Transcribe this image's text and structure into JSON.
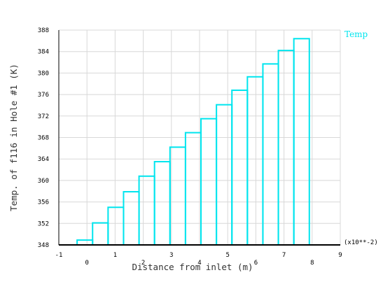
{
  "chart_data": {
    "type": "bar",
    "xlabel": "Distance from inlet (m)",
    "ylabel": "Temp. of f116 in Hole #1 (K)",
    "x_multiplier": "(x10**-2)",
    "xlim": [
      -1,
      9
    ],
    "ylim": [
      348,
      388
    ],
    "xticks": [
      "-1",
      "0",
      "1",
      "2",
      "3",
      "4",
      "5",
      "6",
      "7",
      "8",
      "9"
    ],
    "yticks": [
      "348",
      "352",
      "356",
      "360",
      "364",
      "368",
      "372",
      "376",
      "380",
      "384",
      "388"
    ],
    "grid": true,
    "legend_position": "top-right",
    "series": [
      {
        "name": "Temp",
        "color": "#00e5ee",
        "bars": [
          {
            "x0": -0.35,
            "x1": 0.2,
            "y": 348.9
          },
          {
            "x0": 0.2,
            "x1": 0.75,
            "y": 352.1
          },
          {
            "x0": 0.75,
            "x1": 1.3,
            "y": 355.0
          },
          {
            "x0": 1.3,
            "x1": 1.85,
            "y": 357.9
          },
          {
            "x0": 1.85,
            "x1": 2.4,
            "y": 360.8
          },
          {
            "x0": 2.4,
            "x1": 2.95,
            "y": 363.5
          },
          {
            "x0": 2.95,
            "x1": 3.5,
            "y": 366.2
          },
          {
            "x0": 3.5,
            "x1": 4.05,
            "y": 368.9
          },
          {
            "x0": 4.05,
            "x1": 4.6,
            "y": 371.5
          },
          {
            "x0": 4.6,
            "x1": 5.15,
            "y": 374.1
          },
          {
            "x0": 5.15,
            "x1": 5.7,
            "y": 376.8
          },
          {
            "x0": 5.7,
            "x1": 6.25,
            "y": 379.3
          },
          {
            "x0": 6.25,
            "x1": 6.8,
            "y": 381.7
          },
          {
            "x0": 6.8,
            "x1": 7.35,
            "y": 384.2
          },
          {
            "x0": 7.35,
            "x1": 7.9,
            "y": 386.4
          }
        ]
      }
    ]
  }
}
